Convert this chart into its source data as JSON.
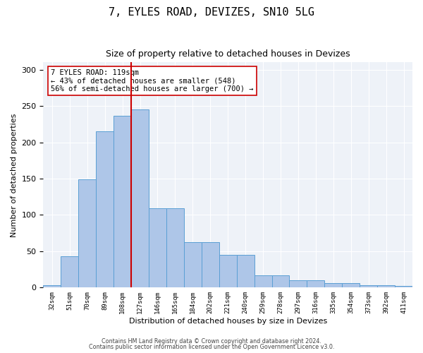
{
  "title1": "7, EYLES ROAD, DEVIZES, SN10 5LG",
  "title2": "Size of property relative to detached houses in Devizes",
  "xlabel": "Distribution of detached houses by size in Devizes",
  "ylabel": "Number of detached properties",
  "categories": [
    "32sqm",
    "51sqm",
    "70sqm",
    "89sqm",
    "108sqm",
    "127sqm",
    "146sqm",
    "165sqm",
    "184sqm",
    "202sqm",
    "221sqm",
    "240sqm",
    "259sqm",
    "278sqm",
    "297sqm",
    "316sqm",
    "335sqm",
    "354sqm",
    "373sqm",
    "392sqm",
    "411sqm"
  ],
  "values": [
    3,
    43,
    149,
    215,
    236,
    245,
    109,
    109,
    63,
    63,
    45,
    45,
    17,
    17,
    10,
    10,
    6,
    6,
    3,
    3,
    2
  ],
  "bar_color": "#aec6e8",
  "bar_edge_color": "#5a9fd4",
  "vline_x": 4.5,
  "vline_color": "#cc0000",
  "annotation_text": "7 EYLES ROAD: 119sqm\n← 43% of detached houses are smaller (548)\n56% of semi-detached houses are larger (700) →",
  "annotation_box_color": "#ffffff",
  "annotation_box_edge": "#cc0000",
  "ylim": [
    0,
    310
  ],
  "yticks": [
    0,
    50,
    100,
    150,
    200,
    250,
    300
  ],
  "footer1": "Contains HM Land Registry data © Crown copyright and database right 2024.",
  "footer2": "Contains public sector information licensed under the Open Government Licence v3.0.",
  "bg_color": "#eef2f8",
  "title1_fontsize": 11,
  "title2_fontsize": 9,
  "annot_fontsize": 7.5,
  "xlabel_fontsize": 8,
  "ylabel_fontsize": 8,
  "footer_fontsize": 5.8
}
